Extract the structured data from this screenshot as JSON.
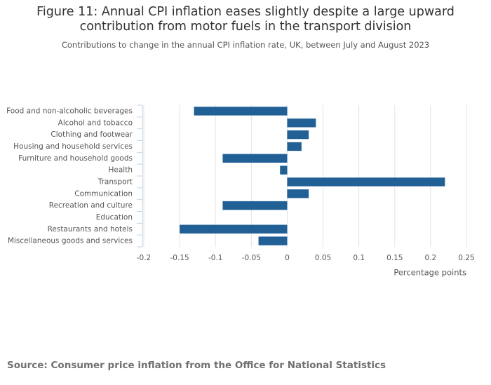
{
  "chart_data": {
    "type": "bar",
    "orientation": "horizontal",
    "title": "Figure 11: Annual CPI inflation eases slightly despite a large upward contribution from motor fuels in the transport division",
    "subtitle": "Contributions to change in the annual CPI inflation rate, UK, between July and August 2023",
    "categories": [
      "Food and non-alcoholic beverages",
      "Alcohol and tobacco",
      "Clothing and footwear",
      "Housing and household services",
      "Furniture and household goods",
      "Health",
      "Transport",
      "Communication",
      "Recreation and culture",
      "Education",
      "Restaurants and hotels",
      "Miscellaneous goods and services"
    ],
    "values": [
      -0.13,
      0.04,
      0.03,
      0.02,
      -0.09,
      -0.01,
      0.22,
      0.03,
      -0.09,
      0,
      -0.15,
      -0.04
    ],
    "color": "#206095",
    "xlabel": "Percentage points",
    "xlim": [
      -0.2,
      0.25
    ],
    "xticks": [
      -0.2,
      -0.15,
      -0.1,
      -0.05,
      0,
      0.05,
      0.1,
      0.15,
      0.2,
      0.25
    ],
    "grid": true,
    "source": "Source: Consumer price inflation from the Office for National Statistics"
  }
}
